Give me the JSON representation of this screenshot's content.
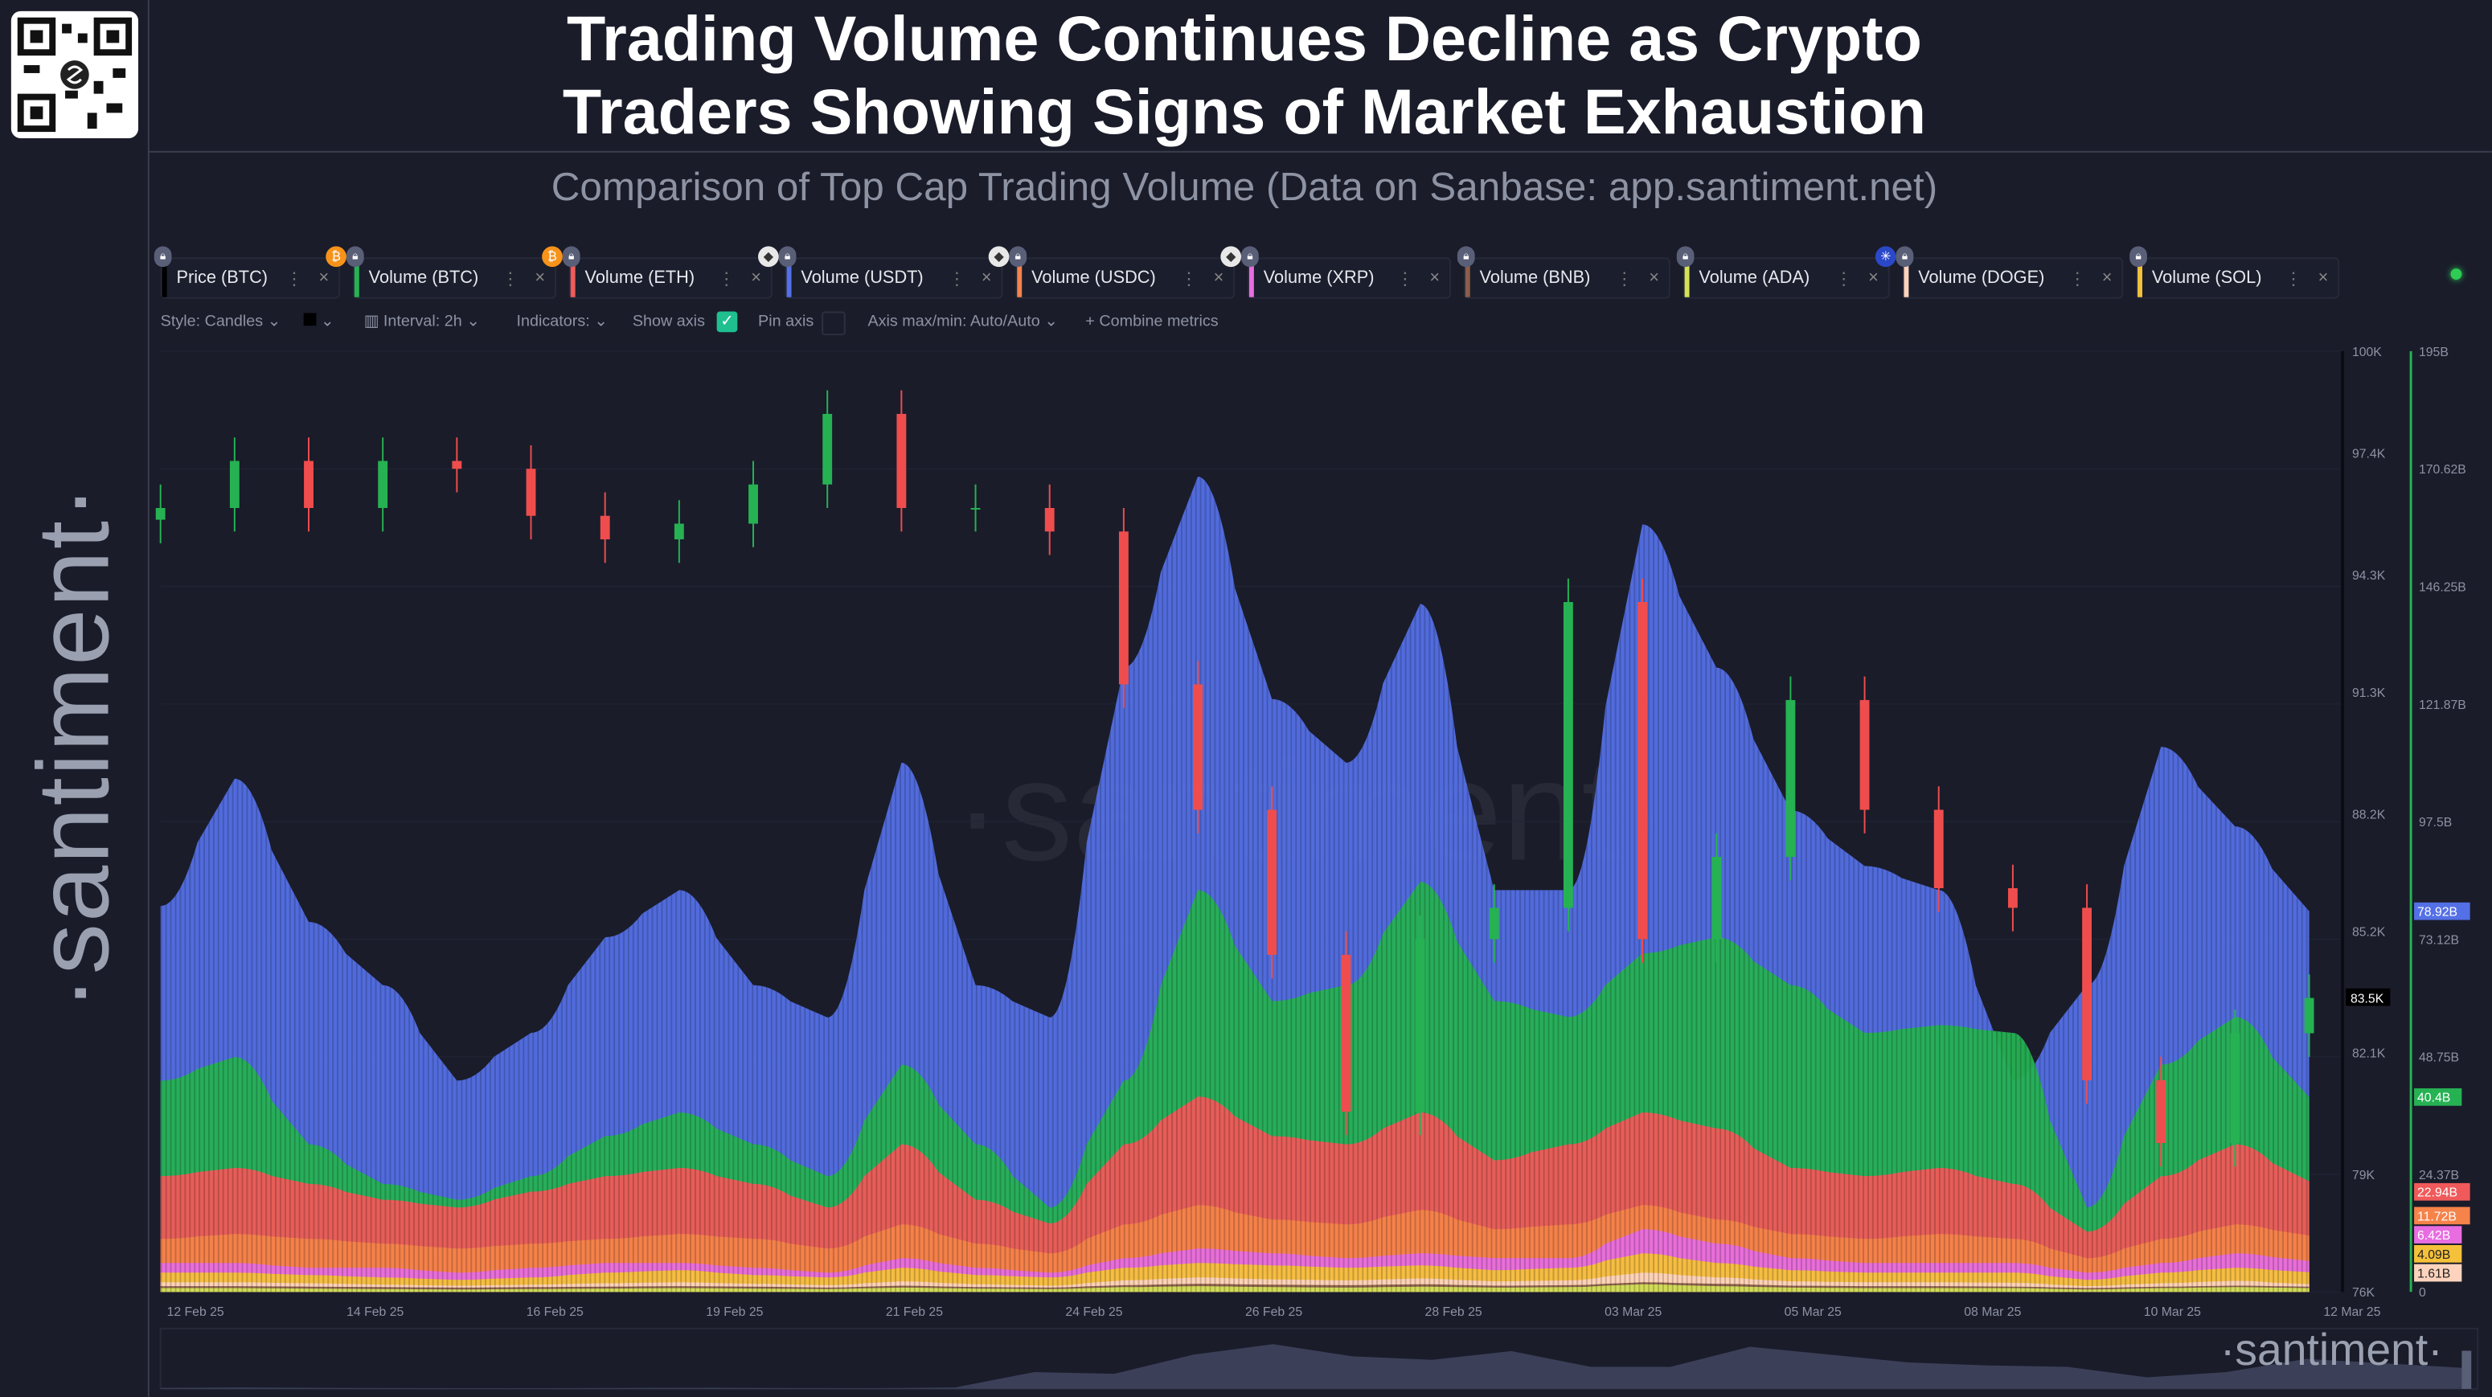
{
  "header": {
    "title_line1": "Trading Volume Continues Decline as Crypto",
    "title_line2": "Traders Showing Signs of Market Exhaustion",
    "subtitle": "Comparison of Top Cap Trading Volume (Data on Sanbase: app.santiment.net)",
    "brand": "·santiment·"
  },
  "metrics": [
    {
      "label": "Price (BTC)",
      "color": "#000000",
      "coin": ""
    },
    {
      "label": "Volume (BTC)",
      "color": "#26b253",
      "coin": "btc"
    },
    {
      "label": "Volume (ETH)",
      "color": "#f05a5a",
      "coin": "btc"
    },
    {
      "label": "Volume (USDT)",
      "color": "#5470e6",
      "coin": "eth"
    },
    {
      "label": "Volume (USDC)",
      "color": "#f5834a",
      "coin": "eth"
    },
    {
      "label": "Volume (XRP)",
      "color": "#e76de0",
      "coin": "eth"
    },
    {
      "label": "Volume (BNB)",
      "color": "#8a5e4a",
      "coin": ""
    },
    {
      "label": "Volume (ADA)",
      "color": "#d4e157",
      "coin": ""
    },
    {
      "label": "Volume (DOGE)",
      "color": "#fdd3bd",
      "coin": "ada"
    },
    {
      "label": "Volume (SOL)",
      "color": "#f5c13a",
      "coin": ""
    }
  ],
  "toolbar": {
    "style": "Style: Candles",
    "interval": "Interval: 2h",
    "indicators": "Indicators:",
    "show_axis": "Show axis",
    "show_axis_checked": true,
    "pin_axis": "Pin axis",
    "pin_axis_checked": false,
    "axis_minmax": "Axis max/min: Auto/Auto",
    "combine": "Combine metrics"
  },
  "watermark": "·santiment·",
  "chart_data": {
    "type": "area",
    "x_tick_labels": [
      "12 Feb 25",
      "14 Feb 25",
      "16 Feb 25",
      "19 Feb 25",
      "21 Feb 25",
      "24 Feb 25",
      "26 Feb 25",
      "28 Feb 25",
      "03 Mar 25",
      "05 Mar 25",
      "08 Mar 25",
      "10 Mar 25",
      "12 Mar 25"
    ],
    "price_axis": {
      "ticks": [
        "100K",
        "97.4K",
        "94.3K",
        "91.3K",
        "88.2K",
        "85.2K",
        "82.1K",
        "79K",
        "76K"
      ],
      "tick_values": [
        100,
        97.4,
        94.3,
        91.3,
        88.2,
        85.2,
        82.1,
        79,
        76
      ],
      "ylim": [
        76,
        100
      ],
      "unit": "K USD",
      "current": "83.5K"
    },
    "volume_axis": {
      "ticks": [
        "195B",
        "170.62B",
        "146.25B",
        "121.87B",
        "97.5B",
        "73.12B",
        "48.75B",
        "24.37B",
        "0"
      ],
      "tick_values": [
        195,
        170.62,
        146.25,
        121.87,
        97.5,
        73.12,
        48.75,
        24.37,
        0
      ],
      "ylim": [
        0,
        195
      ],
      "unit": "B USD"
    },
    "price_btc": [
      96.0,
      97.2,
      96.0,
      97.2,
      97.0,
      95.8,
      95.2,
      95.6,
      96.6,
      98.4,
      96.0,
      96.0,
      95.4,
      91.5,
      88.3,
      84.6,
      80.6,
      85.0,
      85.8,
      93.6,
      85.0,
      87.1,
      91.1,
      88.3,
      86.3,
      85.8,
      81.4,
      79.8,
      82.6,
      83.5
    ],
    "series": [
      {
        "name": "Volume (USDT)",
        "color": "#5470e6",
        "last": "78.92B",
        "values": [
          80.0,
          106.4,
          76.7,
          63.6,
          43.8,
          53.7,
          73.5,
          83.3,
          63.6,
          56.9,
          109.7,
          63.6,
          56.9,
          129.4,
          169.0,
          122.9,
          109.7,
          142.6,
          83.3,
          83.3,
          159.1,
          129.4,
          99.8,
          88.3,
          83.3,
          43.8,
          63.6,
          113.0,
          96.5,
          78.92
        ]
      },
      {
        "name": "Volume (BTC)",
        "color": "#26b253",
        "last": "40.4B",
        "values": [
          43.8,
          48.7,
          30.6,
          22.4,
          19.1,
          24.0,
          32.3,
          37.2,
          30.6,
          24.0,
          47.1,
          30.6,
          17.5,
          43.8,
          83.3,
          60.3,
          63.6,
          85.0,
          60.3,
          57.0,
          70.2,
          73.5,
          63.6,
          53.7,
          55.3,
          53.7,
          17.5,
          47.1,
          57.0,
          40.4
        ]
      },
      {
        "name": "Volume (ETH)",
        "color": "#f05a5a",
        "last": "22.94B",
        "values": [
          24.0,
          25.7,
          22.4,
          19.1,
          17.5,
          20.8,
          24.0,
          25.7,
          22.4,
          17.5,
          30.6,
          19.1,
          14.2,
          30.6,
          40.5,
          32.3,
          30.6,
          37.2,
          27.3,
          30.6,
          37.2,
          33.9,
          25.7,
          24.0,
          25.7,
          22.4,
          12.5,
          24.0,
          30.6,
          22.94
        ]
      },
      {
        "name": "Volume (USDC)",
        "color": "#f5834a",
        "last": "11.72B",
        "values": [
          11,
          12,
          11,
          10,
          9,
          10,
          11,
          12,
          11,
          9,
          14,
          10,
          8,
          14,
          18,
          15,
          14,
          17,
          13,
          14,
          18,
          15,
          12,
          11,
          12,
          11,
          7,
          11,
          14,
          11.72
        ]
      },
      {
        "name": "Volume (XRP)",
        "color": "#e76de0",
        "last": "6.42B",
        "values": [
          6,
          6,
          5,
          5,
          4,
          5,
          6,
          6,
          5,
          4,
          7,
          5,
          4,
          7,
          9,
          8,
          7,
          8,
          7,
          7,
          13,
          10,
          7,
          6,
          6,
          6,
          4,
          6,
          8,
          6.42
        ]
      },
      {
        "name": "Volume (SOL)",
        "color": "#f5c13a",
        "last": "4.09B",
        "values": [
          4,
          4,
          3.5,
          3,
          2.5,
          3,
          4,
          4.5,
          3.5,
          3,
          5,
          3.5,
          3,
          5,
          6,
          5.5,
          5,
          5.5,
          4.5,
          5,
          8,
          6,
          4.5,
          4,
          4,
          4,
          2.5,
          4,
          5,
          4.09
        ]
      },
      {
        "name": "Volume (DOGE)",
        "color": "#fdd3bd",
        "last": "1.61B",
        "values": [
          2,
          2,
          1.8,
          1.5,
          1.3,
          1.5,
          1.8,
          2,
          1.7,
          1.4,
          2.2,
          1.6,
          1.3,
          2.4,
          3,
          2.6,
          2.4,
          2.8,
          2.2,
          2.4,
          4,
          3,
          2.2,
          2,
          2,
          1.9,
          1.2,
          1.8,
          2.3,
          1.61
        ]
      },
      {
        "name": "Volume (BNB)",
        "color": "#8a5e4a",
        "values": [
          1.2,
          1.2,
          1.1,
          1,
          0.9,
          1,
          1.1,
          1.2,
          1.1,
          0.9,
          1.3,
          1,
          0.9,
          1.4,
          1.7,
          1.5,
          1.4,
          1.6,
          1.3,
          1.4,
          2,
          1.7,
          1.3,
          1.2,
          1.2,
          1.1,
          0.8,
          1.1,
          1.3,
          1.1
        ]
      },
      {
        "name": "Volume (ADA)",
        "color": "#d4e157",
        "values": [
          0.8,
          0.8,
          0.7,
          0.6,
          0.5,
          0.6,
          0.7,
          0.8,
          0.7,
          0.6,
          0.9,
          0.7,
          0.6,
          1,
          1.2,
          1,
          0.9,
          1.1,
          0.9,
          1,
          1.6,
          1.2,
          0.9,
          0.8,
          0.8,
          0.8,
          0.5,
          0.8,
          1,
          0.8
        ]
      }
    ]
  }
}
